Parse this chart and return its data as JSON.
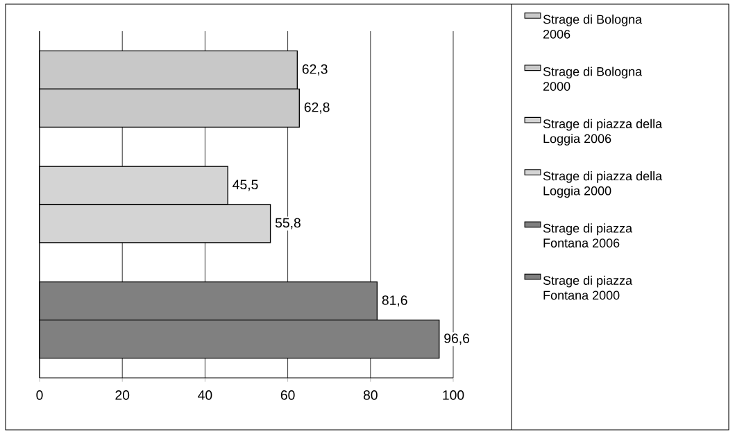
{
  "chart_data": {
    "type": "bar",
    "orientation": "horizontal",
    "categories": [
      null,
      null,
      null
    ],
    "series": [
      {
        "name": "Strage di Bologna 2006",
        "color": "#c8c8c8",
        "values": [
          62.3,
          null,
          null
        ],
        "value_labels": [
          "62,3",
          null,
          null
        ]
      },
      {
        "name": "Strage di Bologna 2000",
        "color": "#c8c8c8",
        "values": [
          62.8,
          null,
          null
        ],
        "value_labels": [
          "62,8",
          null,
          null
        ]
      },
      {
        "name": "Strage di piazza della Loggia 2006",
        "color": "#d4d4d4",
        "values": [
          null,
          45.5,
          null
        ],
        "value_labels": [
          null,
          "45,5",
          null
        ]
      },
      {
        "name": "Strage di piazza della Loggia 2000",
        "color": "#d4d4d4",
        "values": [
          null,
          55.8,
          null
        ],
        "value_labels": [
          null,
          "55,8",
          null
        ]
      },
      {
        "name": "Strage di piazza Fontana 2006",
        "color": "#808080",
        "values": [
          null,
          null,
          81.6
        ],
        "value_labels": [
          null,
          null,
          "81,6"
        ]
      },
      {
        "name": "Strage di piazza Fontana 2000",
        "color": "#808080",
        "values": [
          null,
          null,
          96.6
        ],
        "value_labels": [
          null,
          null,
          "96,6"
        ]
      }
    ],
    "xlim": [
      0,
      100
    ],
    "xticks": [
      0,
      20,
      40,
      60,
      80,
      100
    ],
    "grid": "x",
    "legend": "right",
    "tick_labels": "x"
  }
}
